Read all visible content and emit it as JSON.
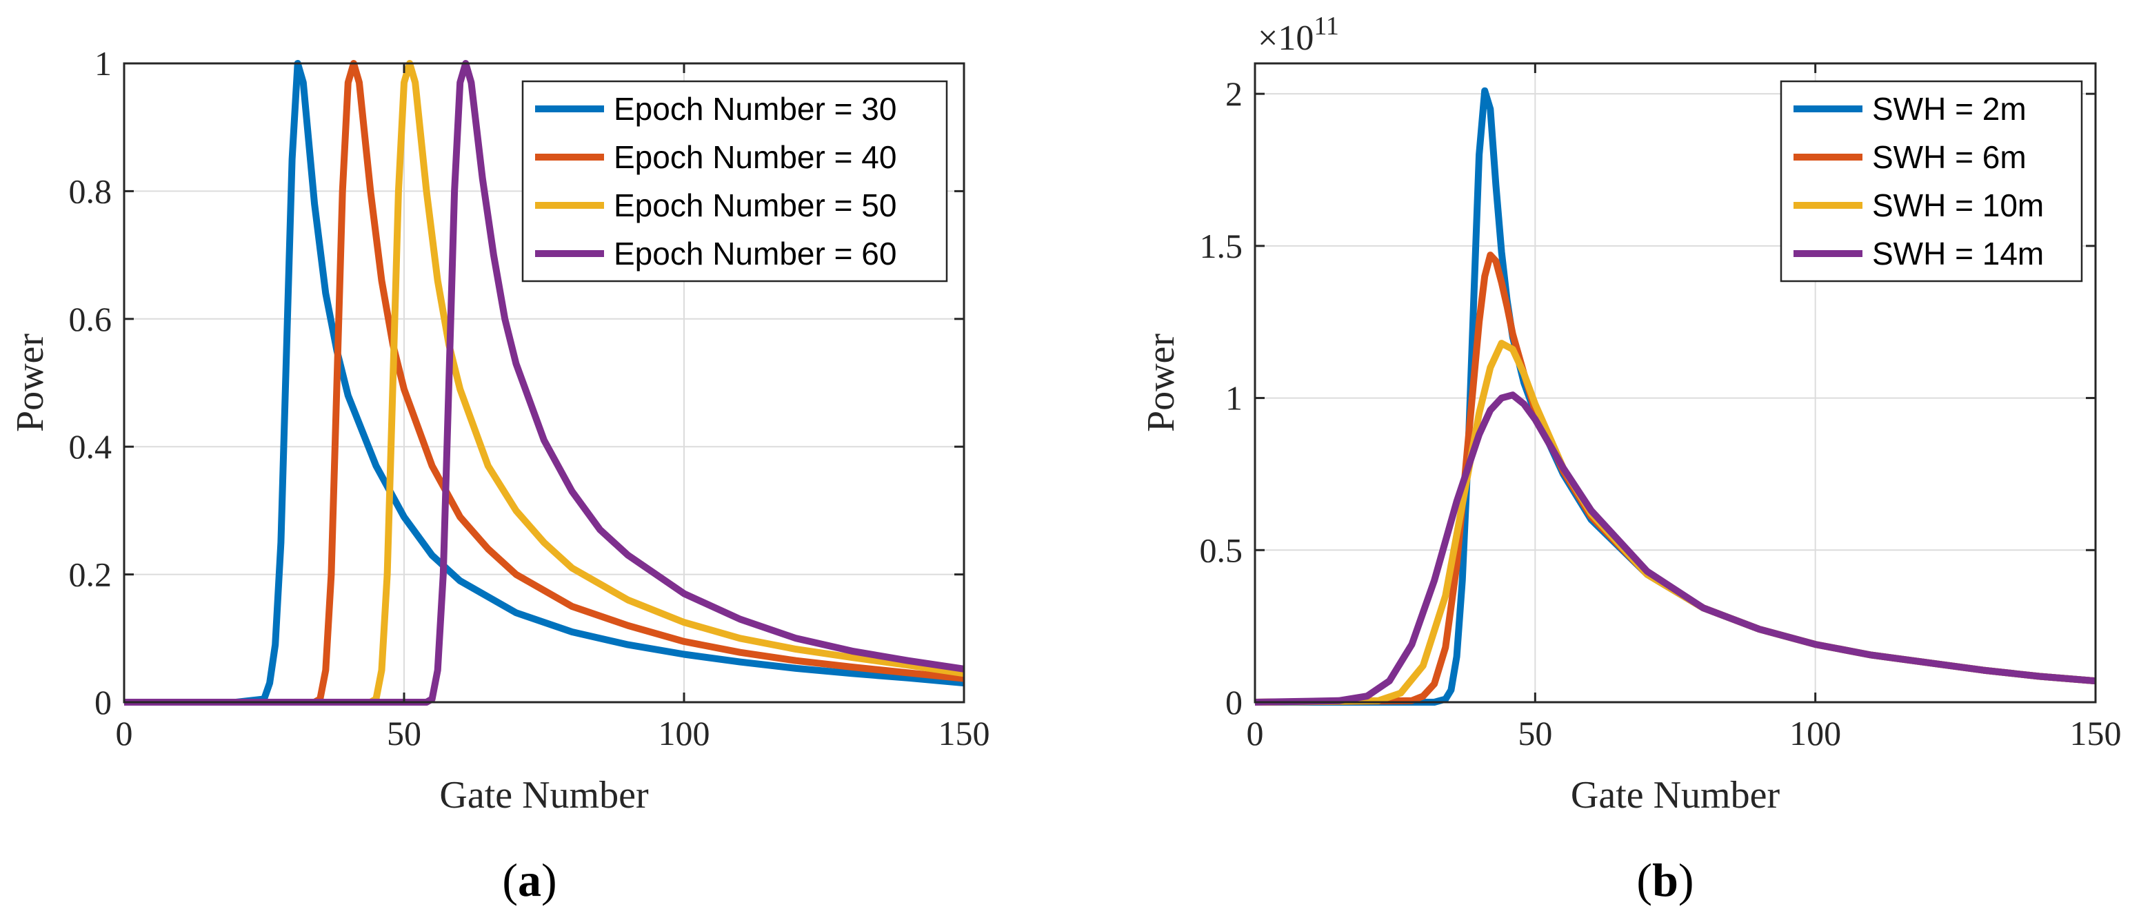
{
  "colors": {
    "blue": "#0072BD",
    "orange": "#D95319",
    "yellow": "#EDB120",
    "purple": "#7E2F8E"
  },
  "panels": [
    {
      "caption": "a",
      "chart_data": {
        "type": "line",
        "title": "",
        "xlabel": "Gate Number",
        "ylabel": "Power",
        "xlim": [
          0,
          150
        ],
        "ylim": [
          0,
          1
        ],
        "xticks": [
          "0",
          "50",
          "100",
          "150"
        ],
        "yticks": [
          "0",
          "0.2",
          "0.4",
          "0.6",
          "0.8",
          "1"
        ],
        "grid": true,
        "legend_position": "top-right",
        "series": [
          {
            "name": "Epoch Number = 30",
            "color": "#0072BD",
            "x": [
              0,
              20,
              25,
              26,
              27,
              28,
              29,
              30,
              31,
              32,
              34,
              36,
              38,
              40,
              45,
              50,
              55,
              60,
              70,
              80,
              90,
              100,
              110,
              120,
              130,
              140,
              150
            ],
            "y": [
              0,
              0,
              0.005,
              0.03,
              0.09,
              0.25,
              0.55,
              0.85,
              1.0,
              0.97,
              0.78,
              0.64,
              0.55,
              0.48,
              0.37,
              0.29,
              0.23,
              0.19,
              0.14,
              0.11,
              0.09,
              0.075,
              0.063,
              0.053,
              0.045,
              0.038,
              0.03
            ]
          },
          {
            "name": "Epoch Number = 40",
            "color": "#D95319",
            "x": [
              0,
              34,
              35,
              36,
              37,
              38,
              39,
              40,
              41,
              42,
              44,
              46,
              48,
              50,
              55,
              60,
              65,
              70,
              80,
              90,
              100,
              110,
              120,
              130,
              140,
              150
            ],
            "y": [
              0,
              0,
              0.005,
              0.05,
              0.2,
              0.5,
              0.8,
              0.97,
              1.0,
              0.97,
              0.8,
              0.66,
              0.56,
              0.49,
              0.37,
              0.29,
              0.24,
              0.2,
              0.15,
              0.12,
              0.095,
              0.078,
              0.065,
              0.055,
              0.046,
              0.037
            ]
          },
          {
            "name": "Epoch Number = 50",
            "color": "#EDB120",
            "x": [
              0,
              44,
              45,
              46,
              47,
              48,
              49,
              50,
              51,
              52,
              54,
              56,
              58,
              60,
              65,
              70,
              75,
              80,
              90,
              100,
              110,
              120,
              130,
              140,
              150
            ],
            "y": [
              0,
              0,
              0.005,
              0.05,
              0.2,
              0.5,
              0.8,
              0.97,
              1.0,
              0.97,
              0.8,
              0.66,
              0.56,
              0.49,
              0.37,
              0.3,
              0.25,
              0.21,
              0.16,
              0.125,
              0.1,
              0.083,
              0.07,
              0.058,
              0.045
            ]
          },
          {
            "name": "Epoch Number = 60",
            "color": "#7E2F8E",
            "x": [
              0,
              54,
              55,
              56,
              57,
              58,
              59,
              60,
              61,
              62,
              64,
              66,
              68,
              70,
              75,
              80,
              85,
              90,
              100,
              110,
              120,
              130,
              140,
              150
            ],
            "y": [
              0,
              0,
              0.005,
              0.05,
              0.2,
              0.5,
              0.8,
              0.97,
              1.0,
              0.97,
              0.82,
              0.7,
              0.6,
              0.53,
              0.41,
              0.33,
              0.27,
              0.23,
              0.17,
              0.13,
              0.1,
              0.08,
              0.065,
              0.052
            ]
          }
        ]
      }
    },
    {
      "caption": "b",
      "exponent_base": "×10",
      "exponent_power": "11",
      "chart_data": {
        "type": "line",
        "title": "",
        "xlabel": "Gate Number",
        "ylabel": "Power",
        "xlim": [
          0,
          150
        ],
        "ylim": [
          0,
          2.1
        ],
        "xticks": [
          "0",
          "50",
          "100",
          "150"
        ],
        "yticks": [
          "0",
          "0.5",
          "1",
          "1.5",
          "2"
        ],
        "y_scale_note": "×10^11",
        "grid": true,
        "legend_position": "top-right",
        "series": [
          {
            "name": "SWH = 2m",
            "color": "#0072BD",
            "x": [
              0,
              32,
              34,
              35,
              36,
              37,
              38,
              39,
              40,
              41,
              42,
              43,
              44,
              45,
              46,
              48,
              50,
              55,
              60,
              70,
              80,
              90,
              100,
              110,
              120,
              130,
              140,
              150
            ],
            "y": [
              0,
              0,
              0.01,
              0.04,
              0.15,
              0.4,
              0.8,
              1.3,
              1.8,
              2.01,
              1.95,
              1.7,
              1.48,
              1.32,
              1.2,
              1.05,
              0.95,
              0.75,
              0.6,
              0.42,
              0.31,
              0.24,
              0.19,
              0.155,
              0.13,
              0.105,
              0.085,
              0.07
            ]
          },
          {
            "name": "SWH = 6m",
            "color": "#D95319",
            "x": [
              0,
              28,
              30,
              32,
              34,
              36,
              38,
              40,
              41,
              42,
              43,
              44,
              45,
              46,
              48,
              50,
              55,
              60,
              70,
              80,
              90,
              100,
              110,
              120,
              130,
              140,
              150
            ],
            "y": [
              0,
              0.005,
              0.02,
              0.06,
              0.18,
              0.45,
              0.85,
              1.25,
              1.4,
              1.47,
              1.45,
              1.38,
              1.3,
              1.21,
              1.08,
              0.96,
              0.76,
              0.61,
              0.42,
              0.31,
              0.24,
              0.19,
              0.155,
              0.13,
              0.105,
              0.085,
              0.07
            ]
          },
          {
            "name": "SWH = 10m",
            "color": "#EDB120",
            "x": [
              0,
              22,
              26,
              30,
              34,
              38,
              40,
              42,
              44,
              46,
              48,
              50,
              55,
              60,
              70,
              80,
              90,
              100,
              110,
              120,
              130,
              140,
              150
            ],
            "y": [
              0,
              0.005,
              0.03,
              0.12,
              0.35,
              0.75,
              0.95,
              1.1,
              1.18,
              1.16,
              1.08,
              0.98,
              0.77,
              0.62,
              0.42,
              0.31,
              0.24,
              0.19,
              0.155,
              0.13,
              0.105,
              0.085,
              0.07
            ]
          },
          {
            "name": "SWH = 14m",
            "color": "#7E2F8E",
            "x": [
              0,
              15,
              20,
              24,
              28,
              32,
              36,
              40,
              42,
              44,
              46,
              48,
              50,
              55,
              60,
              70,
              80,
              90,
              100,
              110,
              120,
              130,
              140,
              150
            ],
            "y": [
              0,
              0.005,
              0.02,
              0.07,
              0.19,
              0.4,
              0.66,
              0.88,
              0.96,
              1.0,
              1.01,
              0.98,
              0.93,
              0.77,
              0.63,
              0.43,
              0.31,
              0.24,
              0.19,
              0.155,
              0.13,
              0.105,
              0.085,
              0.07
            ]
          }
        ]
      }
    }
  ]
}
